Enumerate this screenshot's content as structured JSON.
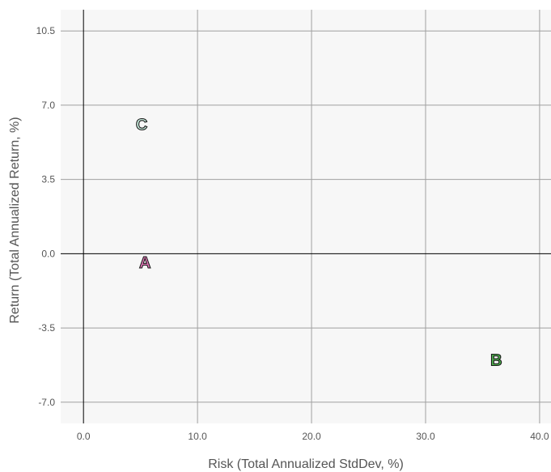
{
  "chart_data": {
    "type": "scatter",
    "title": "",
    "xlabel": "Risk (Total Annualized StdDev, %)",
    "ylabel": "Return (Total Annualized Return, %)",
    "xlim": [
      -2.0,
      41.0
    ],
    "ylim": [
      -8.0,
      11.5
    ],
    "x_ticks": [
      "0.0",
      "10.0",
      "20.0",
      "30.0",
      "40.0"
    ],
    "y_ticks": [
      "-7.0",
      "-3.5",
      "0.0",
      "3.5",
      "7.0",
      "10.5"
    ],
    "x_tick_values": [
      0,
      10,
      20,
      30,
      40
    ],
    "y_tick_values": [
      -7,
      -3.5,
      0,
      3.5,
      7,
      10.5
    ],
    "grid": true,
    "background_color": "#f7f7f7",
    "grid_color": "#a0a0a0",
    "zero_line_color": "#000000",
    "points": [
      {
        "label": "A",
        "x": 5.4,
        "y": -0.4,
        "color": "#e377b8"
      },
      {
        "label": "B",
        "x": 36.2,
        "y": -5.0,
        "color": "#4cae4c"
      },
      {
        "label": "C",
        "x": 5.1,
        "y": 6.1,
        "color": "#c7ebdd"
      }
    ]
  }
}
